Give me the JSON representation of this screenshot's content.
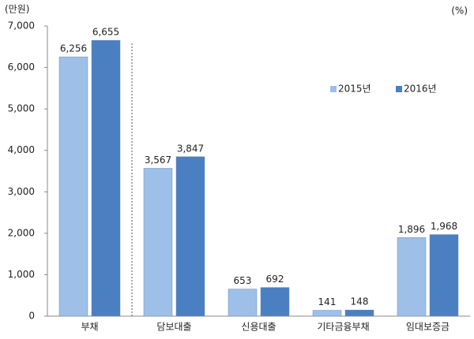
{
  "chart_data": {
    "type": "bar",
    "y_unit": "(만원)",
    "y2_unit": "(%)",
    "categories": [
      "부채",
      "담보대출",
      "신용대출",
      "기타금융부채",
      "임대보증금"
    ],
    "series": [
      {
        "name": "2015년",
        "color": "#9dbfe8",
        "values": [
          6256,
          3567,
          653,
          141,
          1896
        ],
        "value_labels": [
          "6,256",
          "3,567",
          "653",
          "141",
          "1,896"
        ]
      },
      {
        "name": "2016년",
        "color": "#4a7fc1",
        "values": [
          6655,
          3847,
          692,
          148,
          1968
        ],
        "value_labels": [
          "6,655",
          "3,847",
          "692",
          "148",
          "1,968"
        ]
      }
    ],
    "ylim": [
      0,
      7000
    ],
    "yticks": [
      {
        "value": 0,
        "label": "0"
      },
      {
        "value": 1000,
        "label": "1,000"
      },
      {
        "value": 2000,
        "label": "2,000"
      },
      {
        "value": 3000,
        "label": "3,000"
      },
      {
        "value": 4000,
        "label": "4,000"
      },
      {
        "value": 5000,
        "label": "5,000"
      },
      {
        "value": 6000,
        "label": "6,000"
      },
      {
        "value": 7000,
        "label": "7,000"
      }
    ],
    "grid": false
  }
}
